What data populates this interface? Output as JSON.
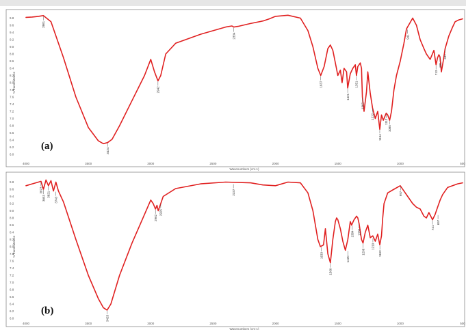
{
  "colors": {
    "series": "#e02020",
    "frame": "#8a8a8a",
    "topbar": "#e6e6e6"
  },
  "chart_data": [
    {
      "type": "line",
      "panel_label": "(a)",
      "xlabel": "Wavenumbers (cm-1)",
      "ylabel": "%Transmittance",
      "xlim": [
        4000,
        500
      ],
      "ylim": [
        6.0,
        10.0
      ],
      "x_ticks": [
        "4000",
        "3500",
        "3000",
        "2500",
        "2000",
        "1500",
        "1000",
        "500"
      ],
      "y_ticks": [
        "6.0",
        "6.2",
        "6.4",
        "6.6",
        "6.8",
        "7.0",
        "7.2",
        "7.4",
        "7.6",
        "7.8",
        "8.0",
        "8.2",
        "8.4",
        "8.6",
        "8.8",
        "9.0",
        "9.2",
        "9.4",
        "9.6",
        "9.8"
      ],
      "grid": false,
      "series": [
        {
          "x": [
            4000,
            3950,
            3900,
            3861,
            3800,
            3700,
            3600,
            3500,
            3420,
            3380,
            3346,
            3310,
            3250,
            3150,
            3050,
            3000,
            2970,
            2942,
            2920,
            2880,
            2800,
            2600,
            2400,
            2350,
            2334,
            2300,
            2200,
            2100,
            2050,
            2000,
            1900,
            1800,
            1740,
            1700,
            1660,
            1637,
            1610,
            1580,
            1560,
            1540,
            1520,
            1500,
            1480,
            1466,
            1450,
            1430,
            1421,
            1400,
            1380,
            1360,
            1351,
            1340,
            1320,
            1310,
            1303,
            1290,
            1270,
            1260,
            1240,
            1222,
            1200,
            1180,
            1164,
            1150,
            1135,
            1112,
            1100,
            1085,
            1070,
            1050,
            1030,
            1000,
            970,
            950,
            900,
            870,
            840,
            810,
            790,
            760,
            730,
            713,
            700,
            690,
            681,
            670,
            655,
            640,
            610,
            580,
            560,
            530,
            500
          ],
          "y": [
            9.82,
            9.83,
            9.85,
            9.87,
            9.7,
            8.7,
            7.6,
            6.75,
            6.38,
            6.3,
            6.33,
            6.42,
            6.8,
            7.5,
            8.2,
            8.65,
            8.3,
            8.05,
            8.2,
            8.8,
            9.1,
            9.35,
            9.55,
            9.58,
            9.55,
            9.57,
            9.65,
            9.72,
            9.78,
            9.85,
            9.88,
            9.8,
            9.45,
            9.0,
            8.4,
            8.2,
            8.45,
            8.95,
            9.05,
            8.9,
            8.55,
            8.2,
            8.35,
            8.0,
            8.4,
            8.3,
            7.85,
            8.25,
            8.4,
            8.5,
            8.2,
            8.45,
            8.55,
            8.4,
            7.6,
            7.2,
            7.75,
            8.3,
            7.7,
            7.3,
            7.0,
            7.2,
            6.7,
            7.1,
            6.95,
            7.15,
            7.1,
            6.95,
            7.2,
            7.8,
            8.2,
            8.6,
            9.1,
            9.5,
            9.8,
            9.6,
            9.2,
            8.95,
            8.8,
            8.65,
            8.9,
            8.5,
            8.7,
            8.78,
            8.72,
            8.3,
            8.6,
            8.95,
            9.3,
            9.55,
            9.7,
            9.75,
            9.78
          ]
        }
      ],
      "peak_labels": [
        {
          "text": "3861",
          "x": 3861,
          "y": 9.87
        },
        {
          "text": "3424",
          "x": 3346,
          "y": 6.33
        },
        {
          "text": "2942",
          "x": 2942,
          "y": 8.05
        },
        {
          "text": "2334",
          "x": 2334,
          "y": 9.55
        },
        {
          "text": "1637",
          "x": 1637,
          "y": 8.2
        },
        {
          "text": "1421",
          "x": 1421,
          "y": 7.85
        },
        {
          "text": "1351",
          "x": 1351,
          "y": 8.2
        },
        {
          "text": "1303",
          "x": 1303,
          "y": 7.6
        },
        {
          "text": "1222",
          "x": 1222,
          "y": 7.3
        },
        {
          "text": "1164",
          "x": 1164,
          "y": 6.7
        },
        {
          "text": "1112",
          "x": 1112,
          "y": 7.15
        },
        {
          "text": "1085",
          "x": 1085,
          "y": 6.95
        },
        {
          "text": "941",
          "x": 941,
          "y": 9.5
        },
        {
          "text": "713",
          "x": 713,
          "y": 8.5
        },
        {
          "text": "681",
          "x": 681,
          "y": 8.72
        },
        {
          "text": "641",
          "x": 641,
          "y": 8.95
        }
      ]
    },
    {
      "type": "line",
      "panel_label": "(b)",
      "xlabel": "Wavenumbers (cm-1)",
      "ylabel": "%Transmittance",
      "xlim": [
        4000,
        500
      ],
      "ylim": [
        6.0,
        10.0
      ],
      "x_ticks": [
        "4000",
        "3500",
        "3000",
        "2500",
        "2000",
        "1500",
        "1000",
        "500"
      ],
      "y_ticks": [
        "6.0",
        "6.2",
        "6.4",
        "6.6",
        "6.8",
        "7.0",
        "7.2",
        "7.4",
        "7.6",
        "7.8",
        "8.0",
        "8.2",
        "8.4",
        "8.6",
        "8.8",
        "9.0",
        "9.2",
        "9.4",
        "9.6",
        "9.8"
      ],
      "grid": false,
      "series": [
        {
          "x": [
            4000,
            3950,
            3900,
            3880,
            3860,
            3840,
            3820,
            3800,
            3780,
            3760,
            3740,
            3700,
            3600,
            3500,
            3420,
            3380,
            3350,
            3320,
            3250,
            3150,
            3050,
            3000,
            2980,
            2962,
            2950,
            2940,
            2920,
            2900,
            2800,
            2600,
            2400,
            2200,
            2100,
            2000,
            1900,
            1800,
            1740,
            1700,
            1660,
            1640,
            1615,
            1600,
            1580,
            1560,
            1540,
            1520,
            1510,
            1500,
            1480,
            1460,
            1440,
            1420,
            1400,
            1390,
            1370,
            1350,
            1340,
            1330,
            1310,
            1298,
            1280,
            1260,
            1240,
            1220,
            1200,
            1180,
            1164,
            1150,
            1140,
            1130,
            1100,
            1050,
            1000,
            970,
            940,
            900,
            870,
            840,
            810,
            790,
            770,
            741,
            720,
            700,
            680,
            660,
            640,
            620,
            580,
            540,
            500
          ],
          "y": [
            9.7,
            9.75,
            9.8,
            9.82,
            9.6,
            9.86,
            9.7,
            9.84,
            9.55,
            9.8,
            9.55,
            9.25,
            8.2,
            7.2,
            6.55,
            6.3,
            6.23,
            6.4,
            7.2,
            8.1,
            8.9,
            9.3,
            9.2,
            9.05,
            9.15,
            9.0,
            9.2,
            9.4,
            9.62,
            9.75,
            9.8,
            9.78,
            9.72,
            9.7,
            9.8,
            9.78,
            9.5,
            9.0,
            8.2,
            8.0,
            8.05,
            8.5,
            7.8,
            7.55,
            8.2,
            8.7,
            8.8,
            8.75,
            8.5,
            8.15,
            7.9,
            8.2,
            8.7,
            8.6,
            8.75,
            8.85,
            8.8,
            8.65,
            8.2,
            8.1,
            8.4,
            8.6,
            8.25,
            8.3,
            8.15,
            8.35,
            8.05,
            8.3,
            8.8,
            9.2,
            9.5,
            9.6,
            9.7,
            9.55,
            9.4,
            9.2,
            9.1,
            9.05,
            8.85,
            8.8,
            8.95,
            8.75,
            8.9,
            9.1,
            9.3,
            9.45,
            9.55,
            9.65,
            9.7,
            9.75,
            9.78
          ]
        }
      ],
      "peak_labels": [
        {
          "text": "3873",
          "x": 3880,
          "y": 9.82
        },
        {
          "text": "3853",
          "x": 3860,
          "y": 9.6
        },
        {
          "text": "3821",
          "x": 3820,
          "y": 9.7
        },
        {
          "text": "3743",
          "x": 3760,
          "y": 9.55
        },
        {
          "text": "3423",
          "x": 3350,
          "y": 6.23
        },
        {
          "text": "2962",
          "x": 2962,
          "y": 9.05
        },
        {
          "text": "2925",
          "x": 2920,
          "y": 9.2
        },
        {
          "text": "2337",
          "x": 2337,
          "y": 9.76
        },
        {
          "text": "1633",
          "x": 1633,
          "y": 8.0
        },
        {
          "text": "1560",
          "x": 1560,
          "y": 7.55
        },
        {
          "text": "1420",
          "x": 1420,
          "y": 7.9
        },
        {
          "text": "1384",
          "x": 1384,
          "y": 8.6
        },
        {
          "text": "1330",
          "x": 1330,
          "y": 8.65
        },
        {
          "text": "1298",
          "x": 1298,
          "y": 8.1
        },
        {
          "text": "1219",
          "x": 1219,
          "y": 8.25
        },
        {
          "text": "1163",
          "x": 1163,
          "y": 8.05
        },
        {
          "text": "997",
          "x": 997,
          "y": 9.7
        },
        {
          "text": "741",
          "x": 741,
          "y": 8.75
        },
        {
          "text": "697",
          "x": 697,
          "y": 8.9
        }
      ]
    }
  ]
}
